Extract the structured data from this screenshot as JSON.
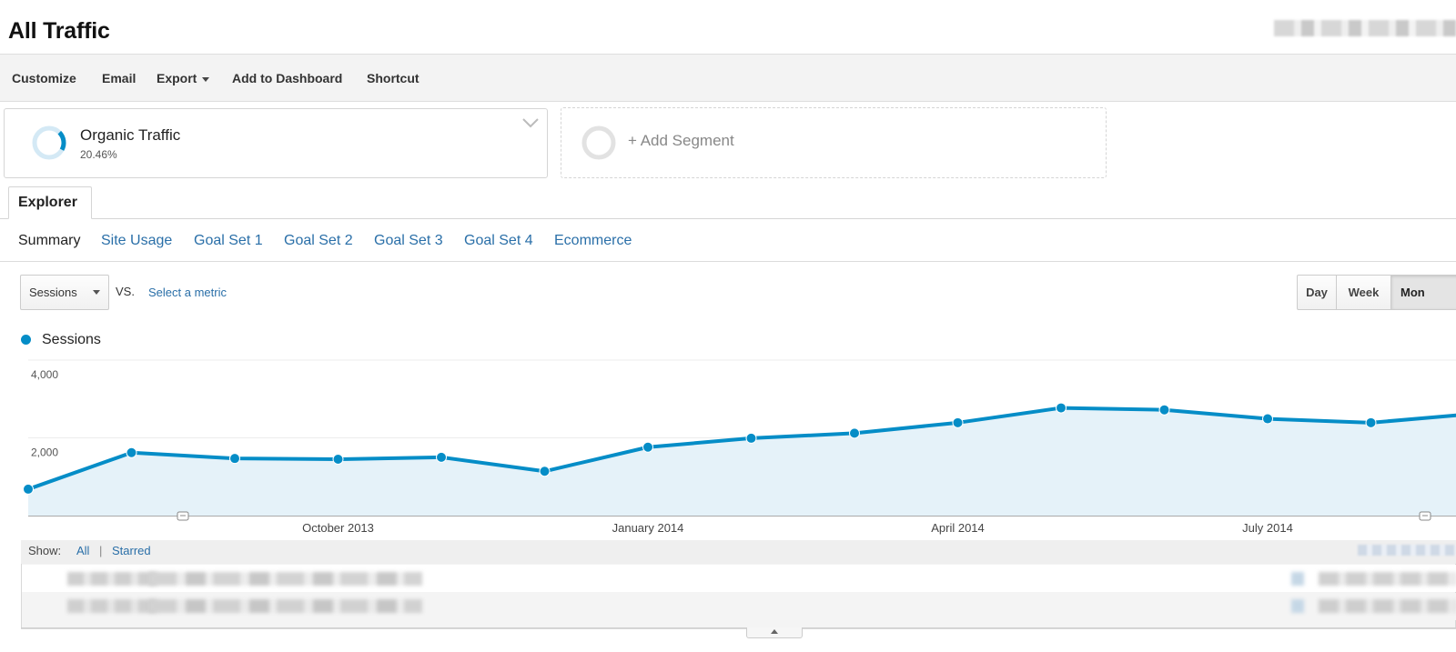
{
  "header": {
    "title": "All Traffic"
  },
  "toolbar": {
    "customize": "Customize",
    "email": "Email",
    "export": "Export",
    "add_to_dashboard": "Add to Dashboard",
    "shortcut": "Shortcut"
  },
  "segments": {
    "active": {
      "name": "Organic Traffic",
      "percent": "20.46%",
      "fraction": 0.2046
    },
    "add_label": "+ Add Segment"
  },
  "tabs": {
    "explorer": "Explorer"
  },
  "subtabs": [
    "Summary",
    "Site Usage",
    "Goal Set 1",
    "Goal Set 2",
    "Goal Set 3",
    "Goal Set 4",
    "Ecommerce"
  ],
  "metric": {
    "selected": "Sessions",
    "vs": "VS.",
    "select_metric": "Select a metric"
  },
  "period": {
    "day": "Day",
    "week": "Week",
    "month": "Mon"
  },
  "legend": {
    "sessions": "Sessions"
  },
  "colors": {
    "accent": "#058dc7",
    "area": "#e5f2f9",
    "link": "#2a6fa8"
  },
  "chart_data": {
    "type": "area",
    "series": [
      {
        "name": "Sessions",
        "x": [
          "2013-07",
          "2013-08",
          "2013-09",
          "2013-10",
          "2013-11",
          "2013-12",
          "2014-01",
          "2014-02",
          "2014-03",
          "2014-04",
          "2014-05",
          "2014-06",
          "2014-07",
          "2014-08",
          "2014-09"
        ],
        "values": [
          680,
          1620,
          1470,
          1450,
          1500,
          1140,
          1760,
          1990,
          2120,
          2390,
          2770,
          2720,
          2490,
          2390,
          2620
        ]
      }
    ],
    "y_tick_labels": [
      "4,000",
      "2,000"
    ],
    "x_tick_labels": [
      "October 2013",
      "January 2014",
      "April 2014",
      "July 2014"
    ],
    "ylim": [
      0,
      4000
    ],
    "grid": true,
    "legend": "top-left"
  },
  "table": {
    "show_label": "Show:",
    "all": "All",
    "separator": "|",
    "starred": "Starred"
  }
}
